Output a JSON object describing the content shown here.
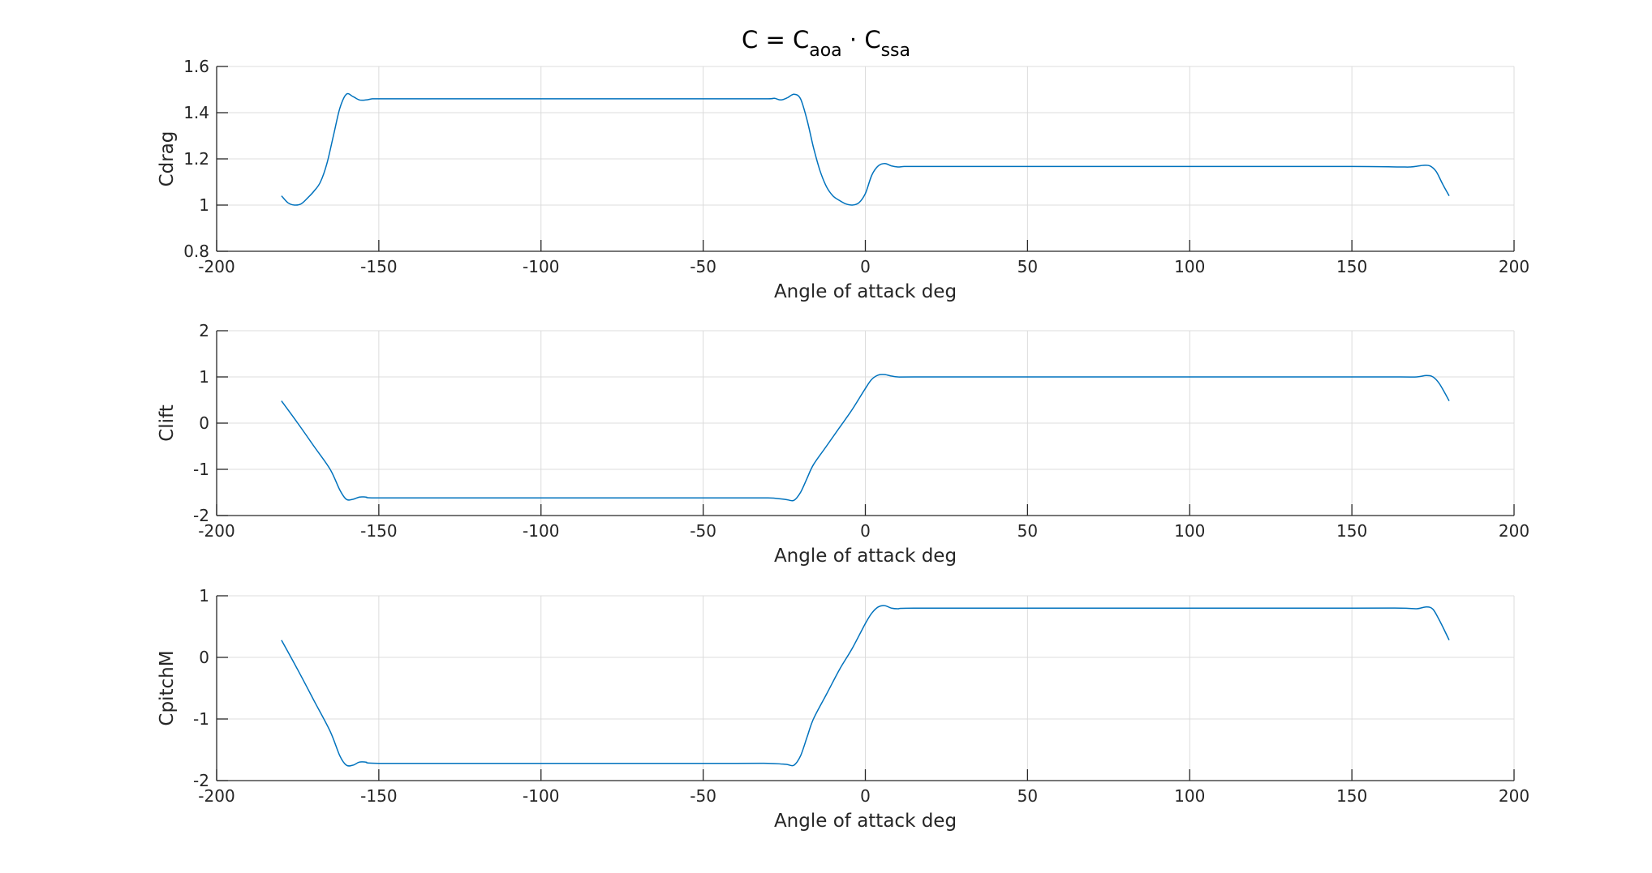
{
  "figure": {
    "title": {
      "main": "C = C",
      "sub1": "aoa",
      "dot": " · C",
      "sub2": "ssa"
    }
  },
  "chart_data": [
    {
      "type": "line",
      "xlabel": "Angle of attack deg",
      "ylabel": "Cdrag",
      "xlim": [
        -200,
        200
      ],
      "ylim": [
        0.8,
        1.6
      ],
      "xticks": [
        -200,
        -150,
        -100,
        -50,
        0,
        50,
        100,
        150,
        200
      ],
      "yticks": [
        0.8,
        1.0,
        1.2,
        1.4,
        1.6
      ],
      "ytick_labels": [
        "0.8",
        "1",
        "1.2",
        "1.4",
        "1.6"
      ],
      "grid": true,
      "color": "#0072bd",
      "x": [
        -180,
        -178,
        -176,
        -174,
        -172,
        -170,
        -168,
        -166,
        -164,
        -162,
        -160,
        -158,
        -156,
        -154,
        -152,
        -150,
        -140,
        -120,
        -100,
        -80,
        -60,
        -40,
        -30,
        -28,
        -26,
        -24,
        -22,
        -20,
        -18,
        -16,
        -14,
        -12,
        -10,
        -8,
        -6,
        -4,
        -2,
        0,
        2,
        4,
        6,
        8,
        10,
        12,
        15,
        20,
        50,
        100,
        150,
        165,
        168,
        170,
        172,
        174,
        176,
        178,
        180
      ],
      "y": [
        1.04,
        1.01,
        1.0,
        1.005,
        1.03,
        1.06,
        1.1,
        1.18,
        1.3,
        1.42,
        1.48,
        1.47,
        1.455,
        1.455,
        1.46,
        1.46,
        1.46,
        1.46,
        1.46,
        1.46,
        1.46,
        1.46,
        1.46,
        1.462,
        1.455,
        1.465,
        1.48,
        1.46,
        1.37,
        1.25,
        1.15,
        1.08,
        1.04,
        1.02,
        1.005,
        1.0,
        1.01,
        1.05,
        1.13,
        1.17,
        1.18,
        1.17,
        1.165,
        1.167,
        1.167,
        1.167,
        1.167,
        1.167,
        1.167,
        1.165,
        1.165,
        1.168,
        1.172,
        1.17,
        1.145,
        1.09,
        1.04
      ]
    },
    {
      "type": "line",
      "xlabel": "Angle of attack deg",
      "ylabel": "Clift",
      "xlim": [
        -200,
        200
      ],
      "ylim": [
        -2,
        2
      ],
      "xticks": [
        -200,
        -150,
        -100,
        -50,
        0,
        50,
        100,
        150,
        200
      ],
      "yticks": [
        -2,
        -1,
        0,
        1,
        2
      ],
      "ytick_labels": [
        "-2",
        "-1",
        "0",
        "1",
        "2"
      ],
      "grid": true,
      "color": "#0072bd",
      "x": [
        -180,
        -175,
        -170,
        -165,
        -162,
        -160,
        -158,
        -156,
        -154,
        -150,
        -120,
        -80,
        -40,
        -30,
        -26,
        -24,
        -22,
        -20,
        -18,
        -16,
        -12,
        -8,
        -4,
        0,
        2,
        4,
        6,
        8,
        10,
        15,
        50,
        100,
        150,
        165,
        170,
        173,
        175,
        177,
        180
      ],
      "y": [
        0.48,
        -0.0,
        -0.5,
        -1.0,
        -1.45,
        -1.65,
        -1.65,
        -1.6,
        -1.6,
        -1.62,
        -1.62,
        -1.62,
        -1.62,
        -1.62,
        -1.64,
        -1.66,
        -1.67,
        -1.5,
        -1.2,
        -0.9,
        -0.5,
        -0.1,
        0.3,
        0.75,
        0.95,
        1.04,
        1.05,
        1.02,
        1.0,
        1.0,
        1.0,
        1.0,
        1.0,
        1.0,
        1.0,
        1.03,
        1.0,
        0.85,
        0.48
      ]
    },
    {
      "type": "line",
      "xlabel": "Angle of attack deg",
      "ylabel": "CpitchM",
      "xlim": [
        -200,
        200
      ],
      "ylim": [
        -2,
        1
      ],
      "xticks": [
        -200,
        -150,
        -100,
        -50,
        0,
        50,
        100,
        150,
        200
      ],
      "yticks": [
        -2,
        -1,
        0,
        1
      ],
      "ytick_labels": [
        "-2",
        "-1",
        "0",
        "1"
      ],
      "grid": true,
      "color": "#0072bd",
      "x": [
        -180,
        -175,
        -170,
        -165,
        -162,
        -160,
        -158,
        -156,
        -154,
        -150,
        -120,
        -80,
        -40,
        -30,
        -26,
        -24,
        -22,
        -20,
        -18,
        -16,
        -12,
        -8,
        -4,
        0,
        2,
        4,
        6,
        8,
        10,
        15,
        50,
        100,
        150,
        165,
        170,
        173,
        175,
        177,
        180
      ],
      "y": [
        0.28,
        -0.2,
        -0.7,
        -1.2,
        -1.6,
        -1.75,
        -1.75,
        -1.7,
        -1.7,
        -1.72,
        -1.72,
        -1.72,
        -1.72,
        -1.72,
        -1.73,
        -1.74,
        -1.75,
        -1.6,
        -1.3,
        -1.0,
        -0.6,
        -0.2,
        0.15,
        0.55,
        0.72,
        0.82,
        0.84,
        0.8,
        0.79,
        0.8,
        0.8,
        0.8,
        0.8,
        0.8,
        0.79,
        0.82,
        0.78,
        0.6,
        0.28
      ]
    }
  ]
}
